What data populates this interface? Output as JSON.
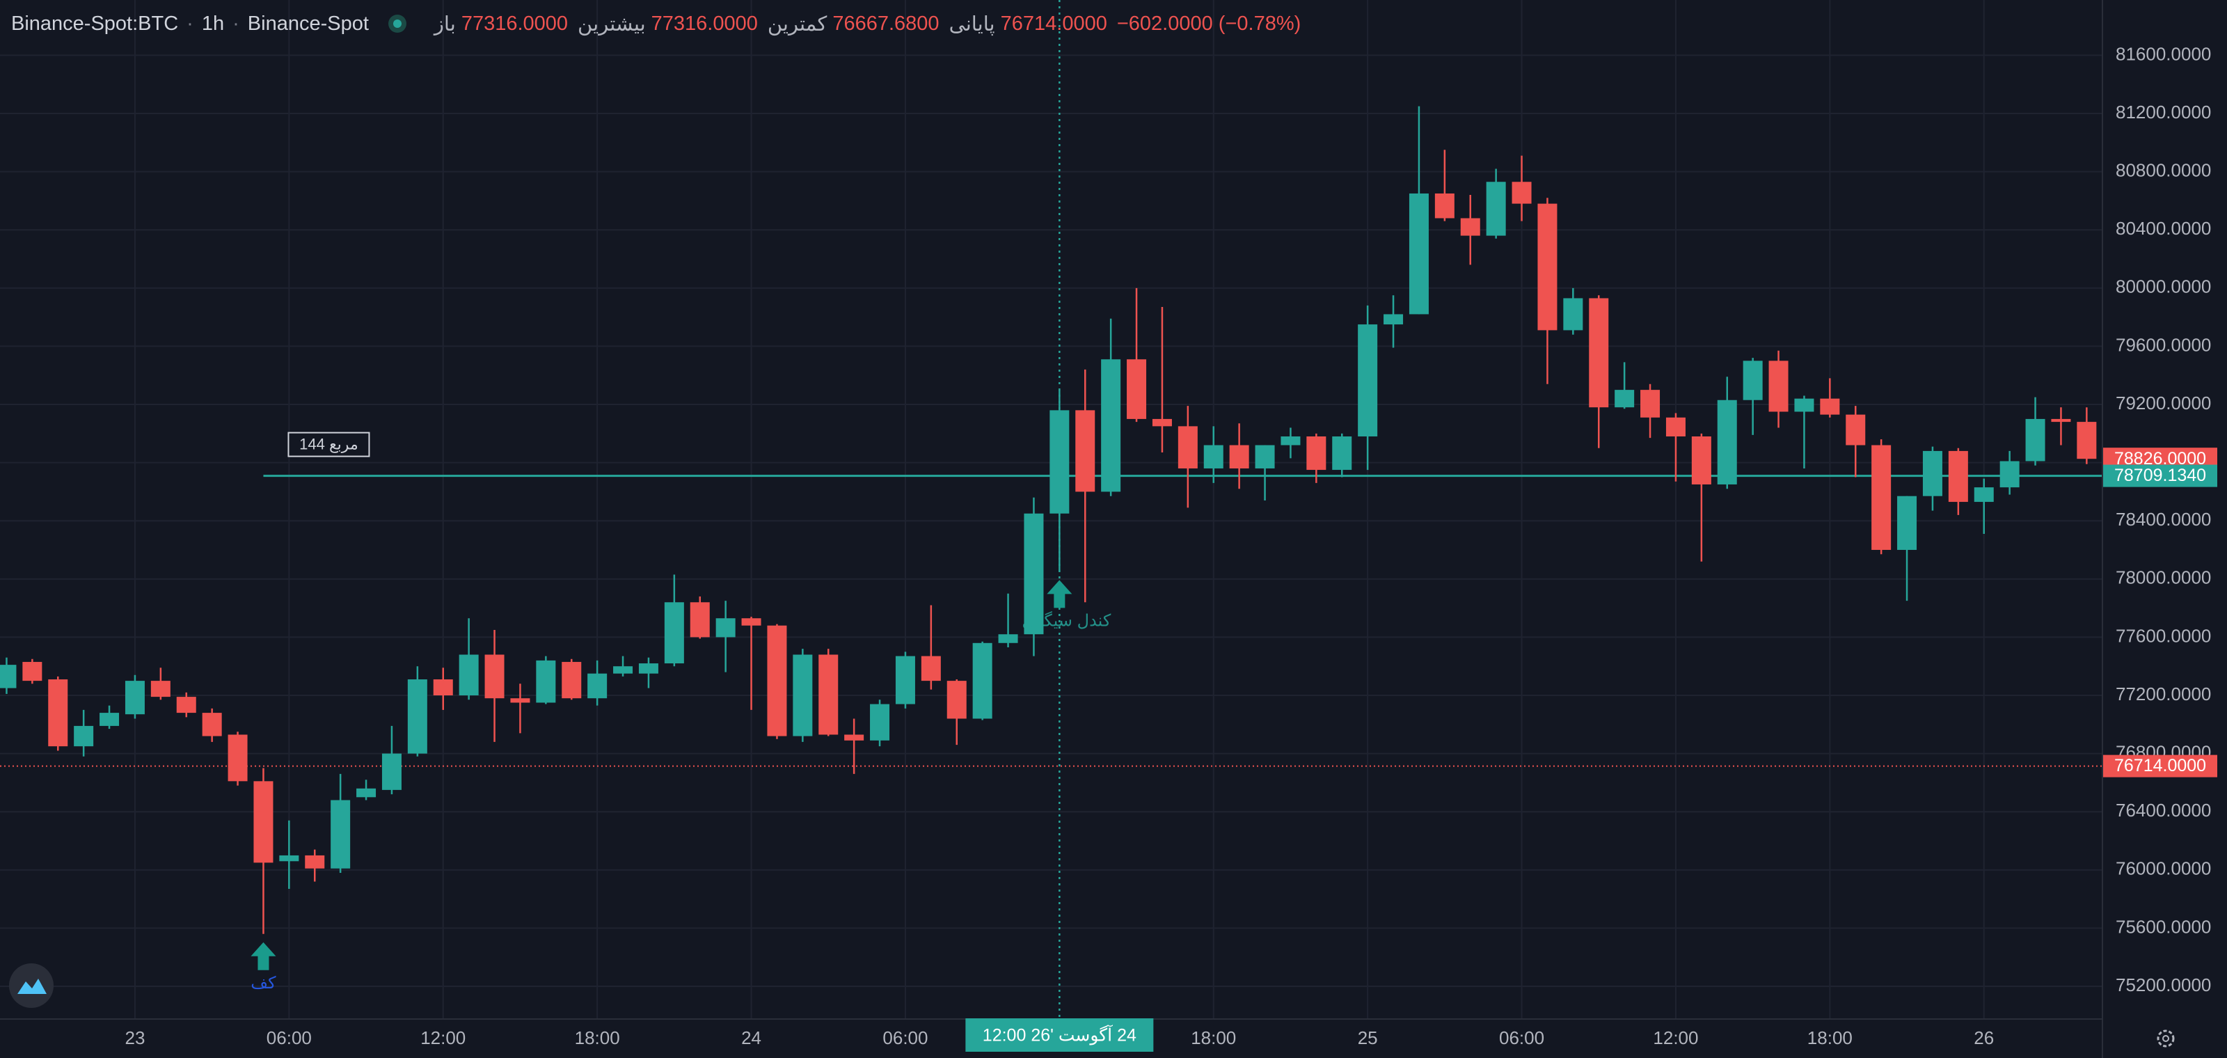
{
  "chart_data": {
    "type": "candlestick",
    "symbol": "Binance-Spot:BTC",
    "interval": "1h",
    "exchange": "Binance-Spot",
    "ohlc_legend": [
      {
        "label": "باز",
        "value": "77316.0000"
      },
      {
        "label": "بیشترین",
        "value": "77316.0000"
      },
      {
        "label": "کمترین",
        "value": "76667.6800"
      },
      {
        "label": "پایانی",
        "value": "76714.0000"
      }
    ],
    "change": "−602.0000 (−0.78%)",
    "up_color": "#26a69a",
    "down_color": "#ef5350",
    "grid": true,
    "categories": [
      null,
      null,
      null,
      null,
      null,
      "23",
      null,
      null,
      null,
      null,
      null,
      "06:00",
      null,
      null,
      null,
      null,
      null,
      "12:00",
      null,
      null,
      null,
      null,
      null,
      "18:00",
      null,
      null,
      null,
      null,
      null,
      "24",
      null,
      null,
      null,
      null,
      null,
      "06:00",
      null,
      null,
      null,
      null,
      null,
      "24 آگوست '26   12:00",
      null,
      null,
      null,
      null,
      null,
      "18:00",
      null,
      null,
      null,
      null,
      null,
      "25",
      null,
      null,
      null,
      null,
      null,
      "06:00",
      null,
      null,
      null,
      null,
      null,
      "12:00",
      null,
      null,
      null,
      null,
      null,
      "18:00",
      null,
      null,
      null,
      null,
      null,
      "26",
      null,
      null,
      null,
      null
    ],
    "crosshair_index": 41,
    "open": [
      77250,
      77430,
      77310,
      76850,
      76990,
      77070,
      77300,
      77190,
      77080,
      76930,
      76610,
      76060,
      76100,
      76010,
      76500,
      76550,
      76800,
      77310,
      77200,
      77480,
      77180,
      77150,
      77430,
      77180,
      77350,
      77350,
      77420,
      77840,
      77600,
      77730,
      77680,
      76920,
      77480,
      76930,
      76890,
      77140,
      77470,
      77300,
      77040,
      77560,
      77620,
      78450,
      79160,
      78600,
      79510,
      79100,
      79050,
      78760,
      78920,
      78760,
      78920,
      78980,
      78750,
      78980,
      79750,
      79820,
      80650,
      80480,
      80360,
      80730,
      80580,
      79710,
      79930,
      79180,
      79300,
      79110,
      78980,
      78650,
      79230,
      79500,
      79150,
      79240,
      79130,
      78920,
      78200,
      78570,
      78880,
      78530,
      78630,
      78810,
      79100,
      79080
    ],
    "high": [
      77460,
      77450,
      77330,
      77100,
      77130,
      77340,
      77390,
      77220,
      77110,
      76950,
      76700,
      76340,
      76140,
      76660,
      76620,
      76990,
      77400,
      77390,
      77730,
      77650,
      77280,
      77470,
      77450,
      77440,
      77470,
      77460,
      78030,
      77880,
      77850,
      77740,
      77690,
      77520,
      77520,
      77040,
      77170,
      77500,
      77820,
      77310,
      77570,
      77900,
      78560,
      79300,
      79440,
      79790,
      80000,
      79870,
      79190,
      79050,
      79070,
      78920,
      79040,
      79000,
      79000,
      79880,
      79950,
      81250,
      80950,
      80640,
      80820,
      80910,
      80620,
      80000,
      79950,
      79490,
      79340,
      79140,
      79000,
      79390,
      79520,
      79570,
      79260,
      79380,
      79190,
      78960,
      78570,
      78910,
      78900,
      78690,
      78880,
      79250,
      79180,
      79180
    ],
    "low": [
      77210,
      77280,
      76820,
      76780,
      76970,
      77040,
      77170,
      77050,
      76880,
      76580,
      75560,
      75870,
      75920,
      75980,
      76480,
      76520,
      76780,
      77100,
      77170,
      76880,
      76940,
      77140,
      77170,
      77130,
      77330,
      77250,
      77400,
      77590,
      77360,
      77100,
      76900,
      76880,
      76920,
      76660,
      76850,
      77110,
      77240,
      76860,
      77030,
      77530,
      77470,
      78050,
      77840,
      78570,
      79080,
      78870,
      78490,
      78660,
      78620,
      78540,
      78830,
      78660,
      78700,
      78750,
      79590,
      79820,
      80460,
      80160,
      80340,
      80460,
      79340,
      79680,
      78900,
      79170,
      78970,
      78670,
      78120,
      78620,
      78990,
      79040,
      78760,
      79110,
      78700,
      78170,
      77850,
      78470,
      78440,
      78310,
      78580,
      78780,
      78920,
      78790
    ],
    "close": [
      77410,
      77300,
      76850,
      76990,
      77080,
      77300,
      77190,
      77080,
      76920,
      76610,
      76050,
      76100,
      76010,
      76480,
      76560,
      76800,
      77310,
      77200,
      77480,
      77180,
      77150,
      77440,
      77180,
      77350,
      77400,
      77420,
      77840,
      77600,
      77730,
      77680,
      76920,
      77480,
      76930,
      76890,
      77140,
      77470,
      77300,
      77040,
      77560,
      77620,
      78450,
      79160,
      78600,
      79510,
      79100,
      79050,
      78760,
      78920,
      78760,
      78920,
      78980,
      78750,
      78980,
      79750,
      79820,
      80650,
      80480,
      80360,
      80730,
      80580,
      79710,
      79930,
      79180,
      79300,
      79110,
      78980,
      78650,
      79230,
      79500,
      79150,
      79240,
      79130,
      78920,
      78200,
      78570,
      78880,
      78530,
      78630,
      78810,
      79100,
      79080,
      78826
    ],
    "last_close_label": "78826.0000",
    "ylim": [
      74980,
      81980
    ],
    "yticks": [
      {
        "value": 75200,
        "label": "75200.0000"
      },
      {
        "value": 75600,
        "label": "75600.0000"
      },
      {
        "value": 76000,
        "label": "76000.0000"
      },
      {
        "value": 76400,
        "label": "76400.0000"
      },
      {
        "value": 76800,
        "label": "76800.0000"
      },
      {
        "value": 77200,
        "label": "77200.0000"
      },
      {
        "value": 77600,
        "label": "77600.0000"
      },
      {
        "value": 78000,
        "label": "78000.0000"
      },
      {
        "value": 78400,
        "label": "78400.0000"
      },
      {
        "value": 78800,
        "label": "78800.0000"
      },
      {
        "value": 79200,
        "label": "79200.0000"
      },
      {
        "value": 79600,
        "label": "79600.0000"
      },
      {
        "value": 80000,
        "label": "80000.0000"
      },
      {
        "value": 80400,
        "label": "80400.0000"
      },
      {
        "value": 80800,
        "label": "80800.0000"
      },
      {
        "value": 81200,
        "label": "81200.0000"
      },
      {
        "value": 81600,
        "label": "81600.0000"
      }
    ],
    "hline": {
      "value": 78709.134,
      "label": "78709.1340",
      "text": "مربع 144",
      "color": "#26a69a",
      "start_index": 10
    },
    "price_line": {
      "value": 76714,
      "label": "76714.0000",
      "color": "#ef5350"
    },
    "signals": [
      {
        "index": 10,
        "text": "کف",
        "color": "#2962ff"
      },
      {
        "index": 41,
        "text": "کندل سیگنال",
        "color": "#26a69a"
      }
    ]
  }
}
